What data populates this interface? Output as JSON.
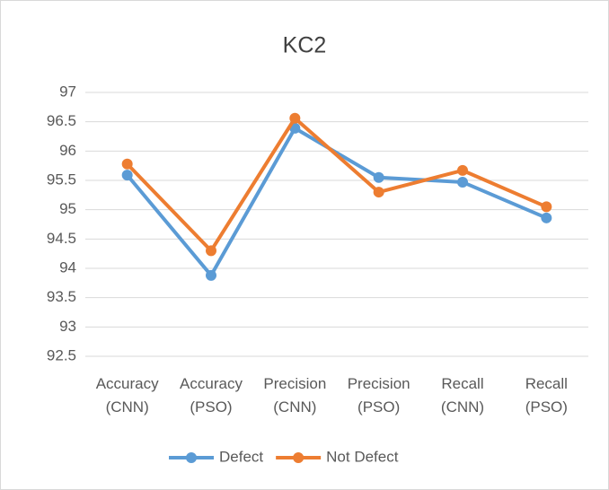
{
  "chart_data": {
    "type": "line",
    "title": "KC2",
    "categories": [
      "Accuracy (CNN)",
      "Accuracy (PSO)",
      "Precision (CNN)",
      "Precision (PSO)",
      "Recall (CNN)",
      "Recall (PSO)"
    ],
    "series": [
      {
        "name": "Defect",
        "color": "#5b9bd5",
        "values": [
          95.59,
          93.88,
          96.39,
          95.55,
          95.47,
          94.86
        ]
      },
      {
        "name": "Not Defect",
        "color": "#ed7d31",
        "values": [
          95.78,
          94.3,
          96.56,
          95.3,
          95.67,
          95.05
        ]
      }
    ],
    "ylim": [
      92.5,
      97
    ],
    "yticks": [
      92.5,
      93,
      93.5,
      94,
      94.5,
      95,
      95.5,
      96,
      96.5,
      97
    ],
    "grid": true,
    "legend": "bottom"
  }
}
